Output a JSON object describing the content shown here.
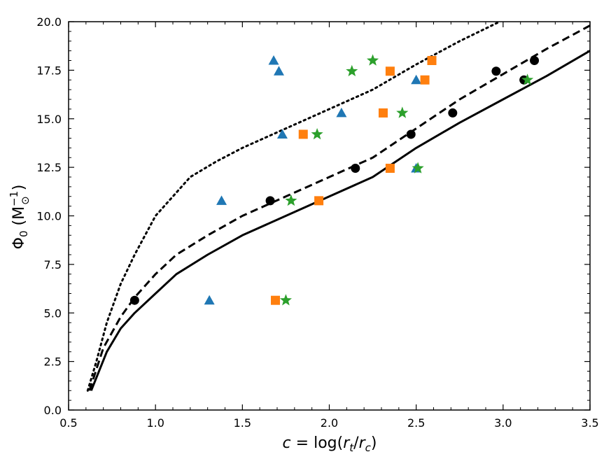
{
  "chart_data": {
    "type": "scatter",
    "xlabel": "c = log(r_t/r_c)",
    "ylabel": "Φ0 (M☉^-1)",
    "xlim": [
      0.5,
      3.5
    ],
    "ylim": [
      0.0,
      20.0
    ],
    "x_ticks": [
      "0.5",
      "1.0",
      "1.5",
      "2.0",
      "2.5",
      "3.0",
      "3.5"
    ],
    "y_ticks": [
      "0.0",
      "2.5",
      "5.0",
      "7.5",
      "10.0",
      "12.5",
      "15.0",
      "17.5",
      "20.0"
    ],
    "grid": false,
    "colors": {
      "black": "#000000",
      "blue": "#1f77b4",
      "orange": "#ff7f0e",
      "green": "#2ca02c"
    },
    "curves": [
      {
        "style": "solid",
        "color": "#000000",
        "x": [
          0.63,
          0.72,
          0.8,
          0.88,
          1.0,
          1.12,
          1.3,
          1.5,
          1.75,
          2.0,
          2.25,
          2.5,
          2.75,
          3.0,
          3.25,
          3.5
        ],
        "y": [
          1.0,
          3.0,
          4.2,
          5.0,
          6.0,
          7.0,
          8.0,
          9.0,
          10.0,
          11.0,
          12.0,
          13.5,
          14.8,
          16.0,
          17.2,
          18.5
        ]
      },
      {
        "style": "dashed",
        "color": "#000000",
        "x": [
          0.62,
          0.7,
          0.8,
          0.88,
          1.0,
          1.12,
          1.3,
          1.5,
          1.75,
          2.0,
          2.25,
          2.5,
          2.75,
          3.0,
          3.25,
          3.5
        ],
        "y": [
          1.0,
          3.2,
          4.8,
          5.8,
          7.0,
          8.0,
          9.0,
          10.0,
          11.0,
          12.0,
          13.0,
          14.5,
          16.0,
          17.3,
          18.6,
          19.8
        ]
      },
      {
        "style": "dotted",
        "color": "#000000",
        "x": [
          0.61,
          0.66,
          0.72,
          0.8,
          0.88,
          1.0,
          1.1,
          1.2,
          1.35,
          1.5,
          1.75,
          2.0,
          2.25,
          2.5,
          2.75,
          2.98
        ],
        "y": [
          1.0,
          2.5,
          4.5,
          6.5,
          8.0,
          10.0,
          11.0,
          12.0,
          12.8,
          13.5,
          14.5,
          15.5,
          16.5,
          17.8,
          19.0,
          20.0
        ]
      }
    ],
    "series": [
      {
        "marker": "circle",
        "color": "#000000",
        "points": [
          [
            0.88,
            5.65
          ],
          [
            1.66,
            10.78
          ],
          [
            2.15,
            12.45
          ],
          [
            2.47,
            14.2
          ],
          [
            2.71,
            15.3
          ],
          [
            2.96,
            17.45
          ],
          [
            3.12,
            17.0
          ],
          [
            3.18,
            18.0
          ]
        ]
      },
      {
        "marker": "triangle",
        "color": "#1f77b4",
        "points": [
          [
            1.31,
            5.65
          ],
          [
            1.38,
            10.78
          ],
          [
            1.68,
            18.0
          ],
          [
            1.71,
            17.45
          ],
          [
            1.73,
            14.2
          ],
          [
            2.07,
            15.3
          ],
          [
            2.5,
            17.0
          ],
          [
            2.5,
            12.45
          ]
        ]
      },
      {
        "marker": "square",
        "color": "#ff7f0e",
        "points": [
          [
            1.69,
            5.65
          ],
          [
            1.85,
            14.2
          ],
          [
            1.94,
            10.78
          ],
          [
            2.31,
            15.3
          ],
          [
            2.35,
            17.45
          ],
          [
            2.35,
            12.45
          ],
          [
            2.55,
            17.0
          ],
          [
            2.59,
            18.0
          ]
        ]
      },
      {
        "marker": "star",
        "color": "#2ca02c",
        "points": [
          [
            1.75,
            5.65
          ],
          [
            1.78,
            10.78
          ],
          [
            1.93,
            14.2
          ],
          [
            2.13,
            17.45
          ],
          [
            2.25,
            18.0
          ],
          [
            2.42,
            15.3
          ],
          [
            2.51,
            12.45
          ],
          [
            3.14,
            17.0
          ]
        ]
      }
    ]
  }
}
